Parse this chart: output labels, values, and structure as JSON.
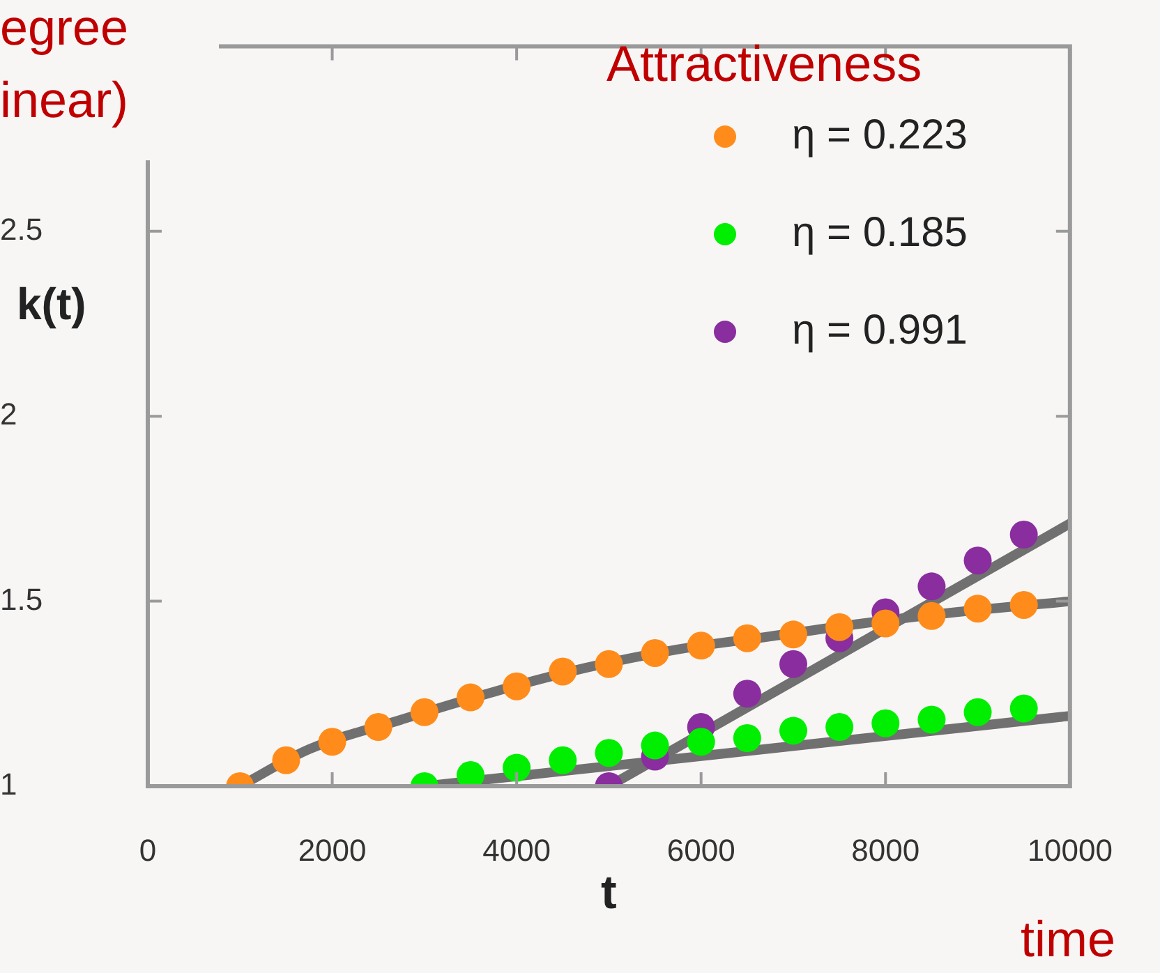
{
  "chart_data": {
    "type": "scatter",
    "xlabel": "t",
    "ylabel": "k(t)",
    "legend_title": "Attractiveness",
    "legend": "top right",
    "marker": "circle",
    "annotations": [
      "egree\ninear)",
      "time"
    ],
    "xlim": [
      0,
      10000
    ],
    "xticks": [
      0,
      2000,
      4000,
      6000,
      8000,
      10000
    ],
    "ylim": [
      1,
      3
    ],
    "yticks": [
      1,
      1.5,
      2,
      2.5
    ],
    "series": [
      {
        "type": "line",
        "marker": "none",
        "color": "#707070",
        "x": [
          1000,
          1750,
          2750,
          3750,
          4750,
          5750,
          6750,
          7750,
          8750,
          10000
        ],
        "values": [
          1,
          1.1,
          1.18,
          1.255,
          1.32,
          1.37,
          1.405,
          1.44,
          1.47,
          1.5
        ]
      },
      {
        "type": "line",
        "marker": "none",
        "color": "#707070",
        "x": [
          3000,
          10000
        ],
        "values": [
          1,
          1.19
        ]
      },
      {
        "type": "line",
        "marker": "none",
        "color": "#707070",
        "x": [
          5000,
          10000
        ],
        "values": [
          1,
          1.71
        ]
      },
      {
        "name": "η = 0.223",
        "color": "#ff8c1a",
        "x": [
          1000,
          1500,
          2000,
          2500,
          3000,
          3500,
          4000,
          4500,
          5000,
          5500,
          6000,
          6500,
          7000,
          7500,
          8000,
          8500,
          9000,
          9500
        ],
        "values": [
          1,
          1.07,
          1.12,
          1.16,
          1.2,
          1.24,
          1.27,
          1.31,
          1.33,
          1.36,
          1.38,
          1.4,
          1.41,
          1.43,
          1.44,
          1.46,
          1.48,
          1.49
        ]
      },
      {
        "name": "η = 0.185",
        "color": "#00ee00",
        "x": [
          3000,
          3500,
          4000,
          4500,
          5000,
          5500,
          6000,
          6500,
          7000,
          7500,
          8000,
          8500,
          9000,
          9500
        ],
        "values": [
          1,
          1.03,
          1.05,
          1.07,
          1.09,
          1.11,
          1.12,
          1.13,
          1.15,
          1.16,
          1.17,
          1.18,
          1.2,
          1.21
        ]
      },
      {
        "name": "η = 0.991",
        "color": "#8a2d9e",
        "x": [
          5000,
          5500,
          6000,
          6500,
          7000,
          7500,
          8000,
          8500,
          9000,
          9500
        ],
        "values": [
          1,
          1.08,
          1.16,
          1.25,
          1.33,
          1.4,
          1.47,
          1.54,
          1.61,
          1.68
        ]
      }
    ]
  }
}
